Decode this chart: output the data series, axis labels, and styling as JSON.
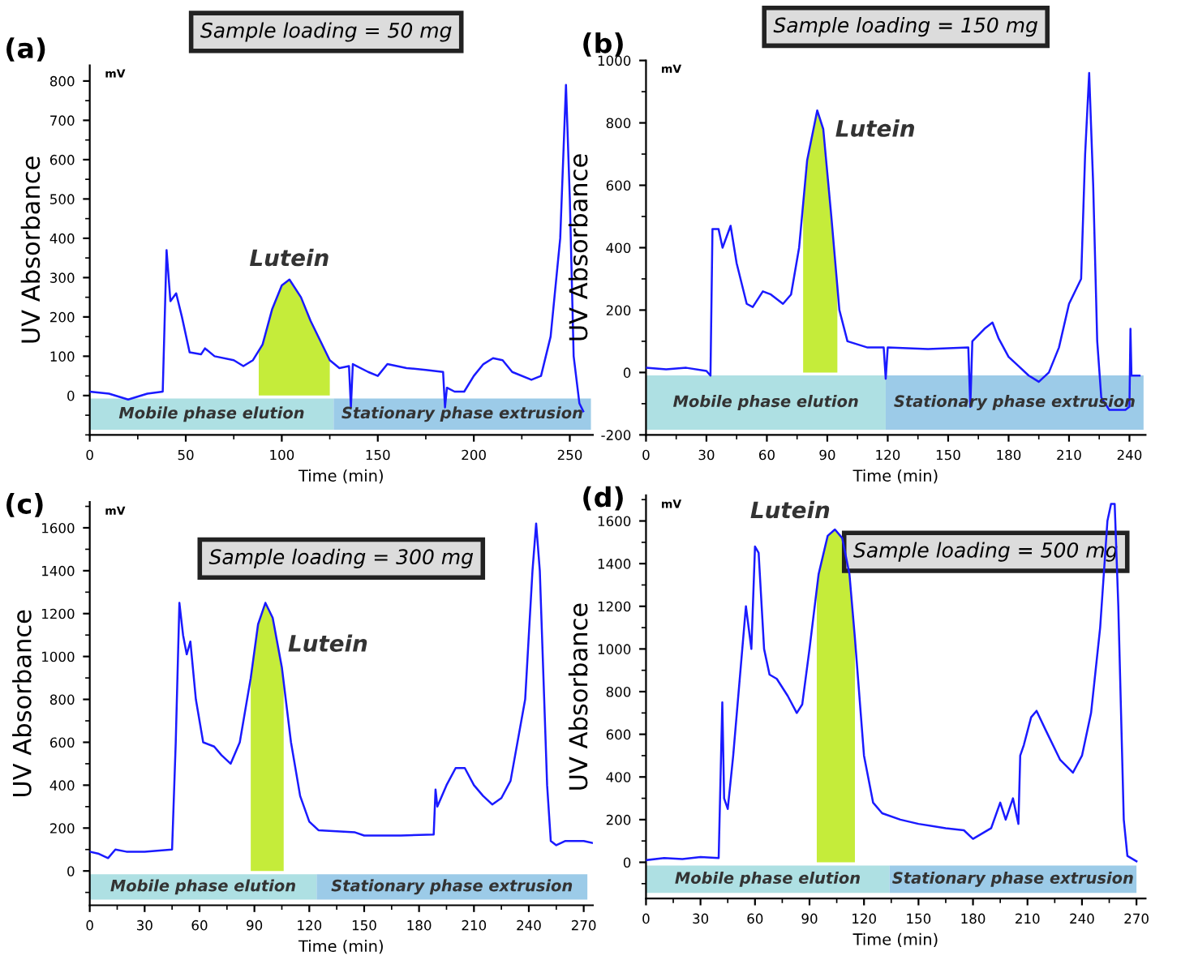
{
  "chart_data": [
    {
      "type": "line",
      "title": "Sample loading = 50 mg",
      "xlabel": "Time (min)",
      "ylabel": "UV Absorbance",
      "annotations": [
        "(a)",
        "mV",
        {
          "text": "Lutein",
          "x": 104,
          "y": 295
        }
      ],
      "xlim": [
        0,
        262
      ],
      "xticks": [
        0,
        50,
        100,
        150,
        200,
        250
      ],
      "ylim": [
        -100,
        840
      ],
      "yticks": [
        0,
        100,
        200,
        300,
        400,
        500,
        600,
        700,
        800
      ],
      "bands": [
        {
          "axis": "x",
          "from": 0,
          "to": 127,
          "label": "Mobile phase elution",
          "color": "#aee0e3"
        },
        {
          "axis": "x",
          "from": 127,
          "to": 261,
          "label": "Stationary phase extrusion",
          "color": "#9ccbe8"
        }
      ],
      "series": [
        {
          "color": "#1a1aff",
          "x": [
            0,
            10,
            20,
            30,
            38,
            40,
            42,
            45,
            48,
            52,
            58,
            60,
            65,
            75,
            80,
            85,
            90,
            95,
            100,
            104,
            110,
            115,
            120,
            125,
            130,
            135,
            136,
            137,
            145,
            150,
            155,
            165,
            175,
            184,
            185,
            186,
            190,
            195,
            200,
            205,
            210,
            215,
            220,
            230,
            235,
            240,
            245,
            248,
            250,
            252,
            255,
            257
          ],
          "values": [
            10,
            5,
            -10,
            5,
            10,
            370,
            240,
            260,
            200,
            110,
            105,
            120,
            100,
            90,
            75,
            90,
            130,
            220,
            280,
            295,
            250,
            190,
            140,
            90,
            70,
            75,
            -30,
            80,
            60,
            50,
            80,
            70,
            65,
            60,
            -30,
            20,
            10,
            10,
            50,
            80,
            95,
            90,
            60,
            40,
            50,
            150,
            400,
            790,
            500,
            100,
            -20,
            -40
          ]
        },
        {
          "type": "area",
          "color": "#c5ec3a",
          "x": [
            88,
            90,
            95,
            100,
            104,
            110,
            115,
            120,
            125
          ],
          "values": [
            118,
            130,
            220,
            280,
            295,
            250,
            190,
            140,
            90
          ]
        }
      ]
    },
    {
      "type": "line",
      "title": "Sample loading = 150 mg",
      "xlabel": "Time (min)",
      "ylabel": "UV Absorbance",
      "annotations": [
        "(b)",
        "mV",
        {
          "text": "Lutein",
          "x": 85,
          "y": 840
        }
      ],
      "xlim": [
        0,
        248
      ],
      "xticks": [
        0,
        30,
        60,
        90,
        120,
        150,
        180,
        210,
        240
      ],
      "ylim": [
        -200,
        1000
      ],
      "yticks": [
        -200,
        0,
        200,
        400,
        600,
        800,
        1000
      ],
      "bands": [
        {
          "axis": "x",
          "from": 0,
          "to": 119,
          "label": "Mobile phase elution",
          "color": "#aee0e3"
        },
        {
          "axis": "x",
          "from": 119,
          "to": 247,
          "label": "Stationary phase extrusion",
          "color": "#9ccbe8"
        }
      ],
      "series": [
        {
          "color": "#1a1aff",
          "x": [
            0,
            10,
            20,
            30,
            32,
            33,
            36,
            38,
            42,
            45,
            50,
            53,
            58,
            62,
            68,
            72,
            76,
            80,
            85,
            88,
            92,
            96,
            100,
            110,
            118,
            119,
            120,
            140,
            160,
            161,
            162,
            168,
            172,
            175,
            180,
            185,
            190,
            195,
            200,
            205,
            210,
            216,
            218,
            220,
            222,
            224,
            226,
            230,
            238,
            240,
            240.5,
            241,
            245
          ],
          "values": [
            15,
            10,
            15,
            5,
            -10,
            460,
            460,
            400,
            470,
            350,
            220,
            210,
            260,
            250,
            220,
            250,
            400,
            680,
            840,
            780,
            500,
            200,
            100,
            80,
            80,
            -20,
            80,
            75,
            80,
            -110,
            100,
            140,
            160,
            110,
            50,
            20,
            -10,
            -30,
            0,
            80,
            220,
            300,
            700,
            960,
            600,
            100,
            -80,
            -120,
            -120,
            -110,
            140,
            -10,
            -10
          ]
        },
        {
          "type": "area",
          "color": "#c5ec3a",
          "x": [
            78,
            80,
            85,
            88,
            92,
            95
          ],
          "values": [
            540,
            680,
            840,
            780,
            500,
            275
          ]
        }
      ]
    },
    {
      "type": "line",
      "title": "Sample loading = 300 mg",
      "xlabel": "Time (min)",
      "ylabel": "UV Absorbance",
      "annotations": [
        "(c)",
        "mV",
        {
          "text": "Lutein",
          "x": 96,
          "y": 1250
        }
      ],
      "xlim": [
        0,
        275
      ],
      "xticks": [
        0,
        30,
        60,
        90,
        120,
        150,
        180,
        210,
        240,
        270
      ],
      "ylim": [
        -160,
        1720
      ],
      "yticks": [
        0,
        200,
        400,
        600,
        800,
        1000,
        1200,
        1400,
        1600
      ],
      "bands": [
        {
          "axis": "x",
          "from": 0,
          "to": 124,
          "label": "Mobile phase elution",
          "color": "#aee0e3"
        },
        {
          "axis": "x",
          "from": 124,
          "to": 272,
          "label": "Stationary phase extrusion",
          "color": "#9ccbe8"
        }
      ],
      "series": [
        {
          "color": "#1a1aff",
          "x": [
            0,
            5,
            10,
            14,
            20,
            30,
            45,
            47,
            49,
            51,
            53,
            55,
            58,
            62,
            68,
            72,
            77,
            82,
            88,
            92,
            96,
            100,
            105,
            110,
            115,
            120,
            125,
            135,
            145,
            150,
            170,
            188,
            189,
            190,
            195,
            200,
            205,
            210,
            215,
            220,
            225,
            230,
            238,
            242,
            244,
            246,
            250,
            252,
            255,
            260,
            270,
            275
          ],
          "values": [
            90,
            80,
            60,
            100,
            90,
            90,
            100,
            600,
            1250,
            1100,
            1010,
            1070,
            800,
            600,
            580,
            540,
            500,
            600,
            900,
            1150,
            1250,
            1180,
            950,
            600,
            350,
            230,
            190,
            185,
            180,
            165,
            165,
            170,
            380,
            300,
            400,
            480,
            480,
            400,
            350,
            310,
            340,
            420,
            800,
            1400,
            1620,
            1400,
            400,
            140,
            120,
            140,
            140,
            130
          ]
        },
        {
          "type": "area",
          "color": "#c5ec3a",
          "x": [
            88,
            92,
            96,
            100,
            105,
            106
          ],
          "values": [
            900,
            1150,
            1250,
            1180,
            950,
            880
          ]
        }
      ]
    },
    {
      "type": "line",
      "title": "Sample loading = 500 mg",
      "xlabel": "Time (min)",
      "ylabel": "UV Absorbance",
      "annotations": [
        "(d)",
        "mV",
        {
          "text": "Lutein",
          "x": 104,
          "y": 1560
        }
      ],
      "xlim": [
        0,
        275
      ],
      "xticks": [
        0,
        30,
        60,
        90,
        120,
        150,
        180,
        210,
        240,
        270
      ],
      "ylim": [
        -170,
        1720
      ],
      "yticks": [
        0,
        200,
        400,
        600,
        800,
        1000,
        1200,
        1400,
        1600
      ],
      "bands": [
        {
          "axis": "x",
          "from": 0,
          "to": 134,
          "label": "Mobile phase elution",
          "color": "#aee0e3"
        },
        {
          "axis": "x",
          "from": 134,
          "to": 270,
          "label": "Stationary phase extrusion",
          "color": "#9ccbe8"
        }
      ],
      "series": [
        {
          "color": "#1a1aff",
          "x": [
            0,
            10,
            20,
            30,
            40,
            42,
            43,
            45,
            48,
            52,
            55,
            58,
            60,
            62,
            65,
            68,
            72,
            78,
            83,
            86,
            90,
            95,
            100,
            104,
            108,
            112,
            115,
            120,
            125,
            130,
            140,
            150,
            165,
            175,
            180,
            190,
            195,
            198,
            202,
            205,
            206,
            208,
            212,
            215,
            220,
            228,
            235,
            240,
            245,
            250,
            254,
            256,
            258,
            260,
            263,
            265,
            270
          ],
          "values": [
            10,
            20,
            15,
            25,
            20,
            750,
            300,
            250,
            500,
            900,
            1200,
            1000,
            1480,
            1450,
            1000,
            880,
            860,
            780,
            700,
            740,
            1000,
            1350,
            1530,
            1560,
            1520,
            1350,
            1050,
            500,
            280,
            230,
            200,
            180,
            160,
            150,
            110,
            160,
            280,
            200,
            300,
            180,
            500,
            550,
            680,
            710,
            620,
            480,
            420,
            500,
            700,
            1100,
            1600,
            1680,
            1680,
            1200,
            200,
            30,
            5
          ]
        },
        {
          "type": "area",
          "color": "#c5ec3a",
          "x": [
            94,
            95,
            100,
            104,
            108,
            112,
            115
          ],
          "values": [
            1280,
            1350,
            1530,
            1560,
            1520,
            1350,
            1050
          ]
        }
      ]
    }
  ]
}
